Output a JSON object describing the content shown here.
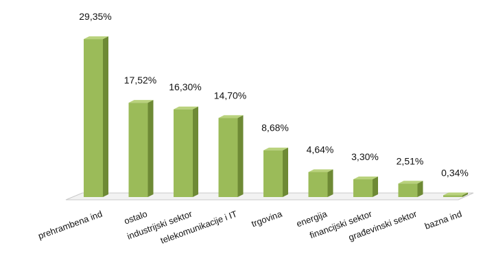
{
  "chart_data": {
    "type": "bar",
    "categories": [
      "prehrambena ind",
      "ostalo",
      "industrijski sektor",
      "telekomunikacije i IT",
      "trgovina",
      "energija",
      "financijski sektor",
      "građevinski sektor",
      "bazna ind"
    ],
    "values": [
      29.35,
      17.52,
      16.3,
      14.7,
      8.68,
      4.64,
      3.3,
      2.51,
      0.34
    ],
    "data_labels": [
      "29,35%",
      "17,52%",
      "16,30%",
      "14,70%",
      "8,68%",
      "4,64%",
      "3,30%",
      "2,51%",
      "0,34%"
    ],
    "ylim": [
      0,
      30
    ],
    "grid": false,
    "legend": "none",
    "colors": {
      "bar_front": "#9bbb59",
      "bar_side": "#6e8a35",
      "bar_top": "#b9d27d",
      "floor_line": "#c8c8c8"
    }
  }
}
